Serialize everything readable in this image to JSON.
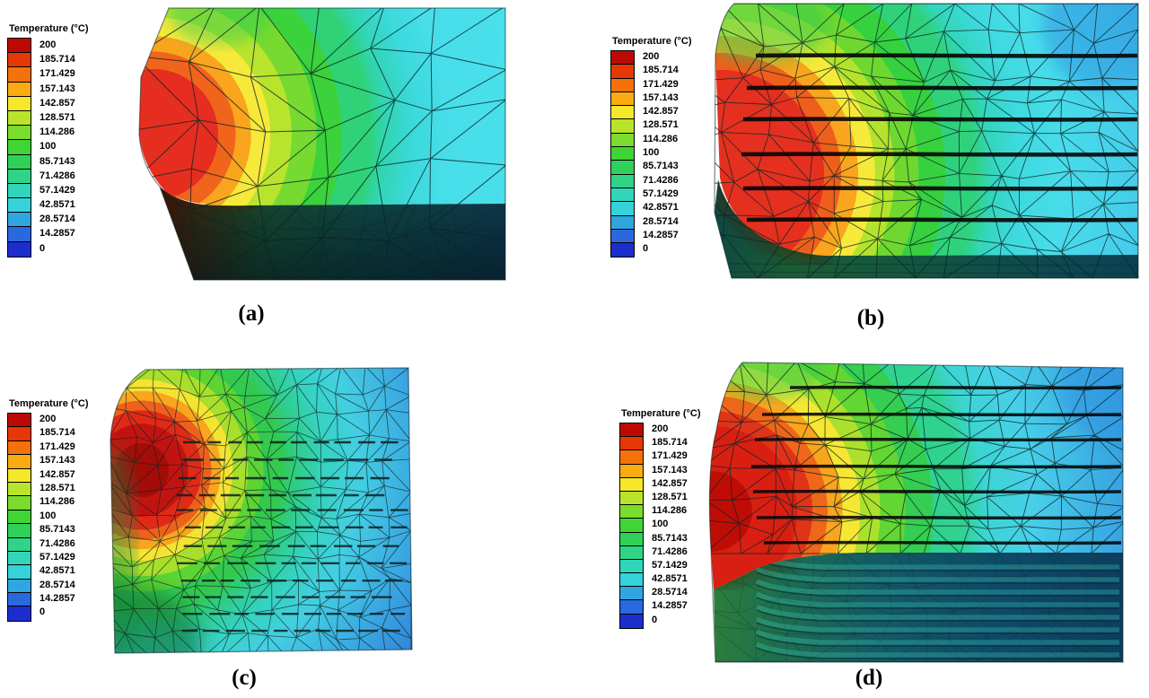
{
  "figure": {
    "legend": {
      "title": "Temperature (°C)",
      "tick_labels": [
        "200",
        "185.714",
        "171.429",
        "157.143",
        "142.857",
        "128.571",
        "114.286",
        "100",
        "85.7143",
        "71.4286",
        "57.1429",
        "42.8571",
        "28.5714",
        "14.2857",
        "0"
      ],
      "band_colors": [
        "#bd0903",
        "#e63704",
        "#f4720a",
        "#fbab12",
        "#f5e72a",
        "#b8e42c",
        "#7cdc2e",
        "#3fd534",
        "#2fd158",
        "#2fd489",
        "#31d6ba",
        "#34d3d9",
        "#2fa6e0",
        "#2a68e0",
        "#1c2dcd"
      ]
    },
    "panels": [
      {
        "id": "a",
        "caption": "(a)"
      },
      {
        "id": "b",
        "caption": "(b)"
      },
      {
        "id": "c",
        "caption": "(c)"
      },
      {
        "id": "d",
        "caption": "(d)"
      }
    ],
    "mesh_line_color": "#0c2424",
    "hot_color": "#e62e20",
    "cold_color": "#2b63cc"
  },
  "chart_data": {
    "type": "heatmap",
    "title": "Temperature (°C)",
    "unit": "°C",
    "scale_min": 0,
    "scale_max": 200,
    "scale_levels": [
      200,
      185.714,
      171.429,
      157.143,
      142.857,
      128.571,
      114.286,
      100,
      85.7143,
      71.4286,
      57.1429,
      42.8571,
      28.5714,
      14.2857,
      0
    ],
    "colormap": "jet (red = 200 °C hot, blue = 0 °C cold)",
    "panels": [
      {
        "label": "(a)",
        "description": "Finite-element temperature contour, coarse triangular mesh without cooling channels; hot spot ~200 °C at left edge, field decays to ~57 °C cyan region at right; dark shaded bottom face of 3-D solid."
      },
      {
        "label": "(b)",
        "description": "Temperature contour on mesh with six horizontal cooling channels (thick black lines); red hot spot ~200 °C bulge on left edge, cyan ~43-57 °C over channel field, dark green bottom strip."
      },
      {
        "label": "(c)",
        "description": "Temperature contour on refined mesh with embedded micro-channel brick grid; dark-red hot spot ~200 °C at upper left, concentric bands green → teal → cyan → blue (~14-43 °C) toward right edge."
      },
      {
        "label": "(d)",
        "description": "Temperature contour, 3-D view with seven horizontal cooling channels; red hot spot ~200 °C at mid-left edge, cyan/blue top face, shaded teal bottom face with channel stripes."
      }
    ]
  }
}
